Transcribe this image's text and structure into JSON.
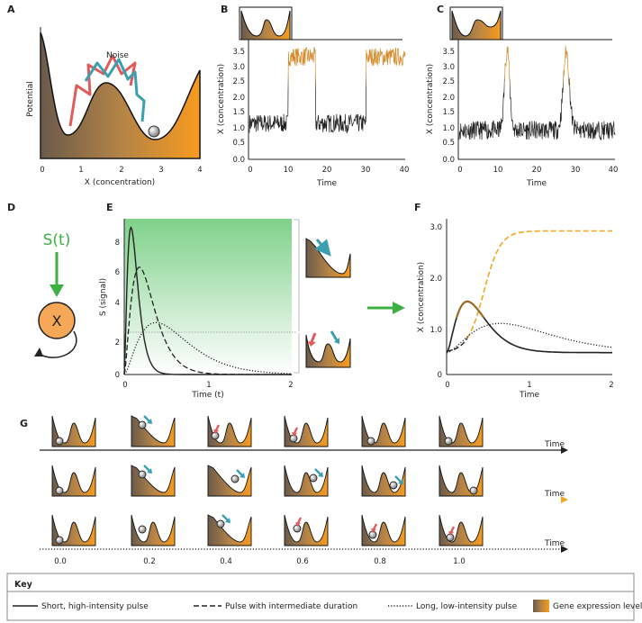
{
  "panels": {
    "A": {
      "label": "A",
      "noise_label": "Noise",
      "ylabel": "Potential",
      "xlabel": "X (concentration)",
      "xticks": [
        "0",
        "1",
        "2",
        "3",
        "4"
      ]
    },
    "B": {
      "label": "B",
      "ylabel": "X (concentration)",
      "xlabel": "Time",
      "yticks": [
        "0.0",
        "0.5",
        "1.0",
        "1.5",
        "2.0",
        "2.5",
        "3.0",
        "3.5"
      ],
      "xticks": [
        "0",
        "10",
        "20",
        "30",
        "40"
      ]
    },
    "C": {
      "label": "C",
      "ylabel": "X (concentration)",
      "xlabel": "Time",
      "yticks": [
        "0.0",
        "0.5",
        "1.0",
        "1.5",
        "2.0",
        "2.5",
        "3.0",
        "3.5"
      ],
      "xticks": [
        "0",
        "10",
        "20",
        "30",
        "40"
      ]
    },
    "D": {
      "label": "D",
      "signal_label": "S(t)",
      "node_label": "X"
    },
    "E": {
      "label": "E",
      "ylabel": "S (signal)",
      "xlabel": "Time (t)",
      "yticks": [
        "0",
        "2",
        "4",
        "6",
        "8"
      ],
      "xticks": [
        "0",
        "1",
        "2"
      ]
    },
    "F": {
      "label": "F",
      "ylabel": "X (concentration)",
      "xlabel": "Time",
      "yticks": [
        "0",
        "1.0",
        "2.0",
        "3.0"
      ],
      "xticks": [
        "0",
        "1",
        "2"
      ]
    },
    "G": {
      "label": "G",
      "time_label": "Time",
      "xticks": [
        "0.0",
        "0.2",
        "0.4",
        "0.6",
        "0.8",
        "1.0"
      ]
    }
  },
  "colors": {
    "accent_orange": "#f5a623",
    "teal": "#3aa0b0",
    "red": "#e05a5a",
    "green": "#3cb043",
    "dark": "#2b2b2b"
  },
  "key": {
    "title": "Key",
    "items": [
      "Short, high-intensity pulse",
      "Pulse with intermediate duration",
      "Long, low-intensity pulse",
      "Gene expression levels"
    ]
  }
}
